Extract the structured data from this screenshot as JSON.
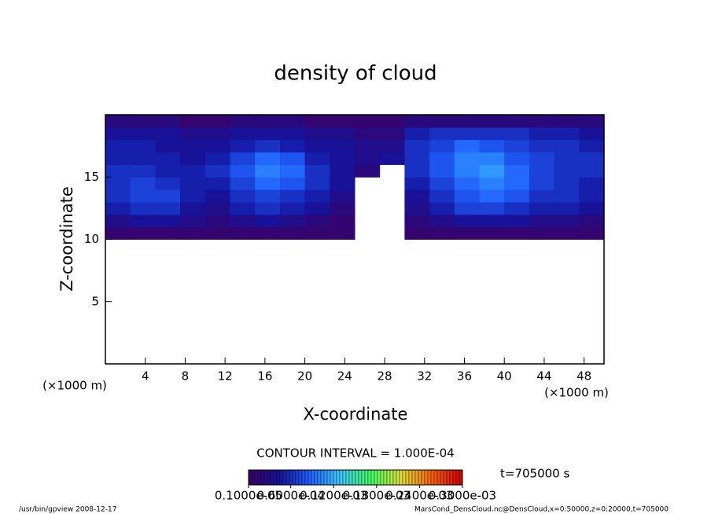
{
  "chart_data": {
    "type": "heatmap",
    "title": "density of cloud",
    "xlabel": "X-coordinate",
    "ylabel": "Z-coordinate",
    "xunit": "(×1000 m)",
    "yunit": "(×1000 m)",
    "xlim": [
      0,
      50
    ],
    "ylim": [
      0,
      20
    ],
    "xticks": [
      4,
      8,
      12,
      16,
      20,
      24,
      28,
      32,
      36,
      40,
      44,
      48
    ],
    "yticks": [
      5,
      10,
      15
    ],
    "xbins": [
      0,
      2.5,
      5,
      7.5,
      10,
      12.5,
      15,
      17.5,
      20,
      22.5,
      25,
      27.5,
      30,
      32.5,
      35,
      37.5,
      40,
      42.5,
      45,
      47.5,
      50
    ],
    "ybins": [
      10,
      11,
      12,
      13,
      14,
      15,
      16,
      17,
      18,
      19,
      20
    ],
    "values": [
      [
        1e-05,
        1e-05,
        1e-05,
        1e-05,
        1e-05,
        1e-05,
        1e-05,
        1e-05,
        1e-05,
        1e-05,
        null,
        null,
        1e-05,
        1e-05,
        1e-05,
        1e-05,
        1e-05,
        1e-05,
        1e-05,
        1e-05
      ],
      [
        3e-05,
        4e-05,
        4e-05,
        3e-05,
        2e-05,
        3e-05,
        4e-05,
        3e-05,
        2e-05,
        1e-05,
        null,
        null,
        2e-05,
        3e-05,
        4e-05,
        4e-05,
        4e-05,
        3e-05,
        3e-05,
        2e-05
      ],
      [
        5e-05,
        6e-05,
        6e-05,
        4e-05,
        3e-05,
        5e-05,
        6e-05,
        5e-05,
        4e-05,
        2e-05,
        null,
        null,
        3e-05,
        5e-05,
        7e-05,
        7e-05,
        6e-05,
        5e-05,
        5e-05,
        4e-05
      ],
      [
        6e-05,
        7e-05,
        7e-05,
        5e-05,
        4e-05,
        6e-05,
        7e-05,
        6e-05,
        5e-05,
        3e-05,
        null,
        null,
        4e-05,
        6e-05,
        8e-05,
        9e-05,
        8e-05,
        6e-05,
        6e-05,
        5e-05
      ],
      [
        6e-05,
        7e-05,
        6e-05,
        5e-05,
        5e-05,
        7e-05,
        9e-05,
        8e-05,
        6e-05,
        4e-05,
        null,
        null,
        5e-05,
        7e-05,
        9e-05,
        0.0001,
        9e-05,
        7e-05,
        6e-05,
        5e-05
      ],
      [
        6e-05,
        6e-05,
        5e-05,
        5e-05,
        6e-05,
        8e-05,
        0.0001,
        9e-05,
        6e-05,
        4e-05,
        2e-05,
        null,
        6e-05,
        8e-05,
        0.0001,
        0.00011,
        9e-05,
        7e-05,
        6e-05,
        6e-05
      ],
      [
        5e-05,
        5e-05,
        5e-05,
        4e-05,
        5e-05,
        7e-05,
        9e-05,
        8e-05,
        5e-05,
        4e-05,
        3e-05,
        4e-05,
        6e-05,
        8e-05,
        0.0001,
        0.0001,
        8e-05,
        7e-05,
        6e-05,
        6e-05
      ],
      [
        5e-05,
        5e-05,
        4e-05,
        4e-05,
        4e-05,
        5e-05,
        6e-05,
        5e-05,
        4e-05,
        4e-05,
        3e-05,
        3e-05,
        6e-05,
        7e-05,
        9e-05,
        8e-05,
        7e-05,
        6e-05,
        6e-05,
        5e-05
      ],
      [
        4e-05,
        4e-05,
        4e-05,
        3e-05,
        3e-05,
        4e-05,
        4e-05,
        4e-05,
        3e-05,
        3e-05,
        2e-05,
        2e-05,
        5e-05,
        6e-05,
        6e-05,
        6e-05,
        6e-05,
        5e-05,
        5e-05,
        4e-05
      ],
      [
        2e-05,
        2e-05,
        2e-05,
        1e-05,
        1e-05,
        2e-05,
        2e-05,
        2e-05,
        1e-05,
        1e-05,
        1e-05,
        1e-05,
        2e-05,
        2e-05,
        2e-05,
        2e-05,
        2e-05,
        2e-05,
        2e-05,
        2e-05
      ]
    ],
    "colors": [
      "#3c0064",
      "#14149c",
      "#2060ff",
      "#40c8ff",
      "#40ff60",
      "#e0e040",
      "#ff6000",
      "#d00000"
    ],
    "contour_interval": "CONTOUR INTERVAL = 1.000E-04",
    "time": "t=705000 s",
    "colorbar": {
      "range": [
        1e-06,
        0.0003
      ],
      "ticks": [
        {
          "value": 1e-06,
          "label": "0.1000e-05"
        },
        {
          "value": 6e-05,
          "label": "0.6000e-04"
        },
        {
          "value": 0.00012,
          "label": "0.1200e-03"
        },
        {
          "value": 0.00018,
          "label": "0.1800e-03"
        },
        {
          "value": 0.00024,
          "label": "0.2400e-03"
        },
        {
          "value": 0.0003,
          "label": "0.3000e-03"
        }
      ]
    },
    "footer_left": "/usr/bin/gpview  2008-12-17",
    "footer_right": "MarsCond_DensCloud.nc@DensCloud,x=0:50000,z=0:20000,t=705000"
  }
}
